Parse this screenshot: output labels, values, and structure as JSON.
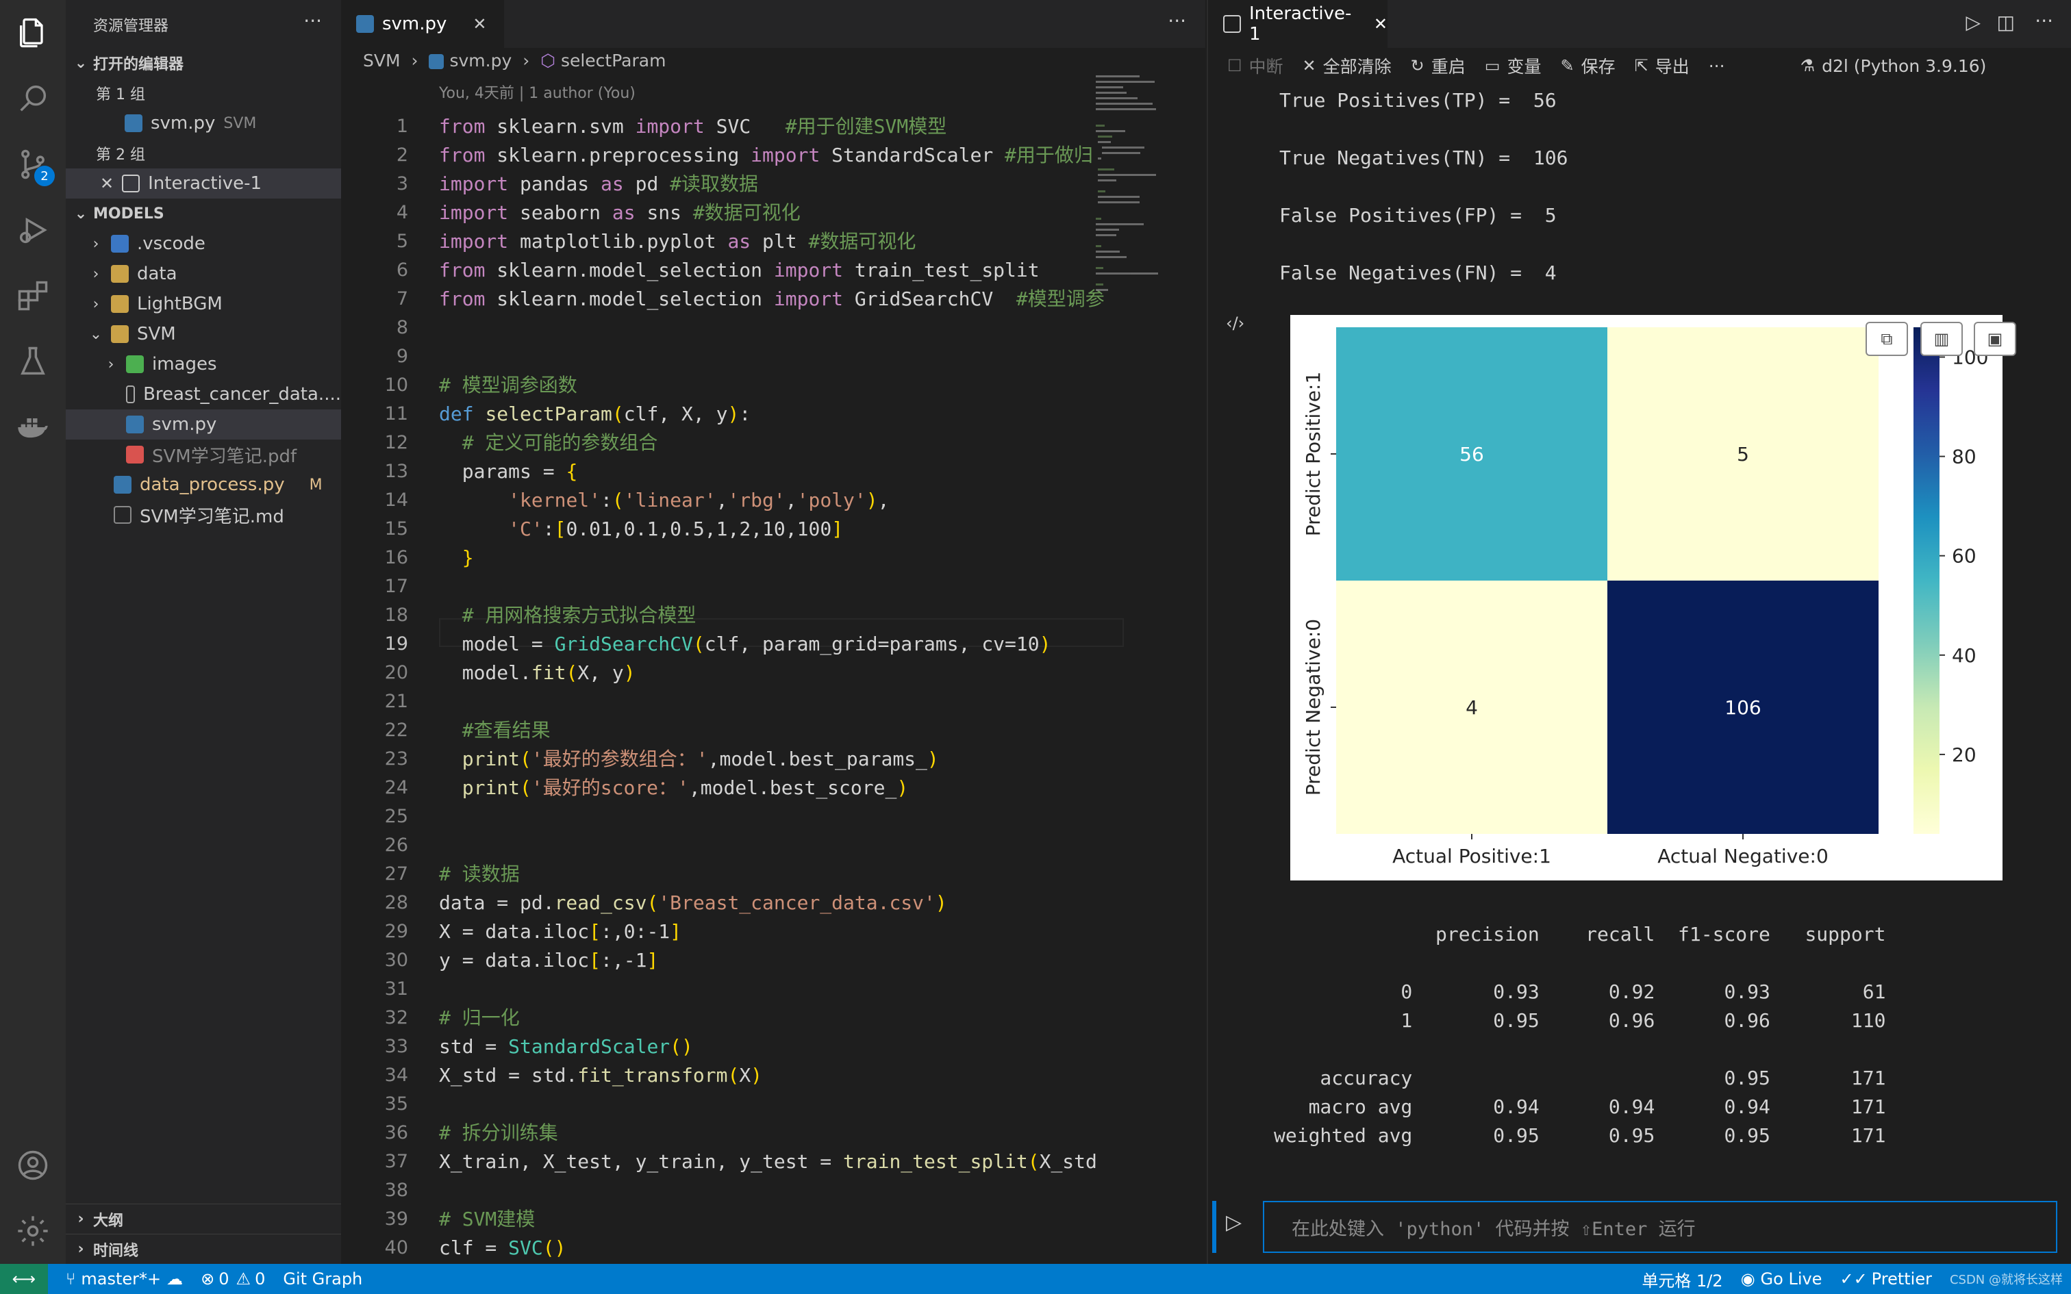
{
  "sidebar": {
    "title": "资源管理器",
    "sections": {
      "open_editors": "打开的编辑器",
      "models": "MODELS",
      "outline": "大纲",
      "timeline": "时间线"
    },
    "groups": {
      "group1": "第 1 组",
      "group2": "第 2 组"
    },
    "open_files": [
      {
        "name": "svm.py",
        "dir": "SVM"
      },
      {
        "name": "Interactive-1"
      }
    ],
    "tree": [
      {
        "name": ".vscode"
      },
      {
        "name": "data"
      },
      {
        "name": "LightBGM"
      },
      {
        "name": "SVM"
      },
      {
        "name": "images"
      },
      {
        "name": "Breast_cancer_data...."
      },
      {
        "name": "svm.py"
      },
      {
        "name": "SVM学习笔记.pdf"
      },
      {
        "name": "data_process.py",
        "status": "M"
      },
      {
        "name": "SVM学习笔记.md"
      }
    ],
    "scm_badge": "2"
  },
  "editor": {
    "tab": "svm.py",
    "breadcrumb": [
      "SVM",
      "svm.py",
      "selectParam"
    ],
    "blame": "You, 4天前 | 1 author (You)",
    "line_numbers": [
      "1",
      "2",
      "3",
      "4",
      "5",
      "6",
      "7",
      "8",
      "9",
      "10",
      "11",
      "12",
      "13",
      "14",
      "15",
      "16",
      "17",
      "18",
      "19",
      "20",
      "21",
      "22",
      "23",
      "24",
      "25",
      "26",
      "27",
      "28",
      "29",
      "30",
      "31",
      "32",
      "33",
      "34",
      "35",
      "36",
      "37",
      "38",
      "39",
      "40"
    ],
    "lines": [
      "from sklearn.svm import SVC   #用于创建SVM模型",
      "from sklearn.preprocessing import StandardScaler #用于做归",
      "import pandas as pd #读取数据",
      "import seaborn as sns #数据可视化",
      "import matplotlib.pyplot as plt #数据可视化",
      "from sklearn.model_selection import train_test_split",
      "from sklearn.model_selection import GridSearchCV  #模型调参",
      "",
      "",
      "# 模型调参函数",
      "def selectParam(clf, X, y):",
      "  # 定义可能的参数组合",
      "  params = {",
      "      'kernel':('linear','rbg','poly'),",
      "      'C':[0.01,0.1,0.5,1,2,10,100]",
      "  }",
      "",
      "  # 用网格搜索方式拟合模型",
      "  model = GridSearchCV(clf, param_grid=params, cv=10)",
      "  model.fit(X, y)",
      "",
      "  #查看结果",
      "  print('最好的参数组合：',model.best_params_)",
      "  print('最好的score：',model.best_score_)",
      "",
      "",
      "# 读数据",
      "data = pd.read_csv('Breast_cancer_data.csv')",
      "X = data.iloc[:,0:-1]",
      "y = data.iloc[:,-1]",
      "",
      "# 归一化",
      "std = StandardScaler()",
      "X_std = std.fit_transform(X)",
      "",
      "# 拆分训练集",
      "X_train, X_test, y_train, y_test = train_test_split(X_std",
      "",
      "# SVM建模",
      "clf = SVC()"
    ]
  },
  "interactive": {
    "tab": "Interactive-1",
    "toolbar": {
      "interrupt": "中断",
      "clear_all": "全部清除",
      "restart": "重启",
      "variables": "变量",
      "save": "保存",
      "export": "导出",
      "more": "···",
      "kernel": "d2l (Python 3.9.16)"
    },
    "output_lines": [
      "True Positives(TP) =  56",
      "True Negatives(TN) =  106",
      "False Positives(FP) =  5",
      "False Negatives(FN) =  4"
    ],
    "report_lines": [
      "              precision    recall  f1-score   support",
      "           0       0.93      0.92      0.93        61",
      "           1       0.95      0.96      0.96       110",
      "    accuracy                           0.95       171",
      "   macro avg       0.94      0.94      0.94       171",
      "weighted avg       0.95      0.95      0.95       171"
    ],
    "input_placeholder": "在此处键入 'python' 代码并按 ⇧Enter 运行"
  },
  "chart_data": {
    "type": "heatmap",
    "rows": [
      "Predict Positive:1",
      "Predict Negative:0"
    ],
    "columns": [
      "Actual Positive:1",
      "Actual Negative:0"
    ],
    "values": [
      [
        56,
        5
      ],
      [
        4,
        106
      ]
    ],
    "colormap": "YlGnBu",
    "colorbar_ticks": [
      20,
      40,
      60,
      80,
      100
    ],
    "colorbar_range": [
      4,
      106
    ]
  },
  "statusbar": {
    "branch": "master*+",
    "errors": "0",
    "warnings": "0",
    "git_graph": "Git Graph",
    "cell": "单元格 1/2",
    "golive": "Go Live",
    "prettier": "Prettier",
    "watermark": "CSDN @就将长这样"
  },
  "colors": {
    "accent": "#007acc",
    "sidebar_bg": "#252526",
    "editor_bg": "#1e1e1e"
  }
}
